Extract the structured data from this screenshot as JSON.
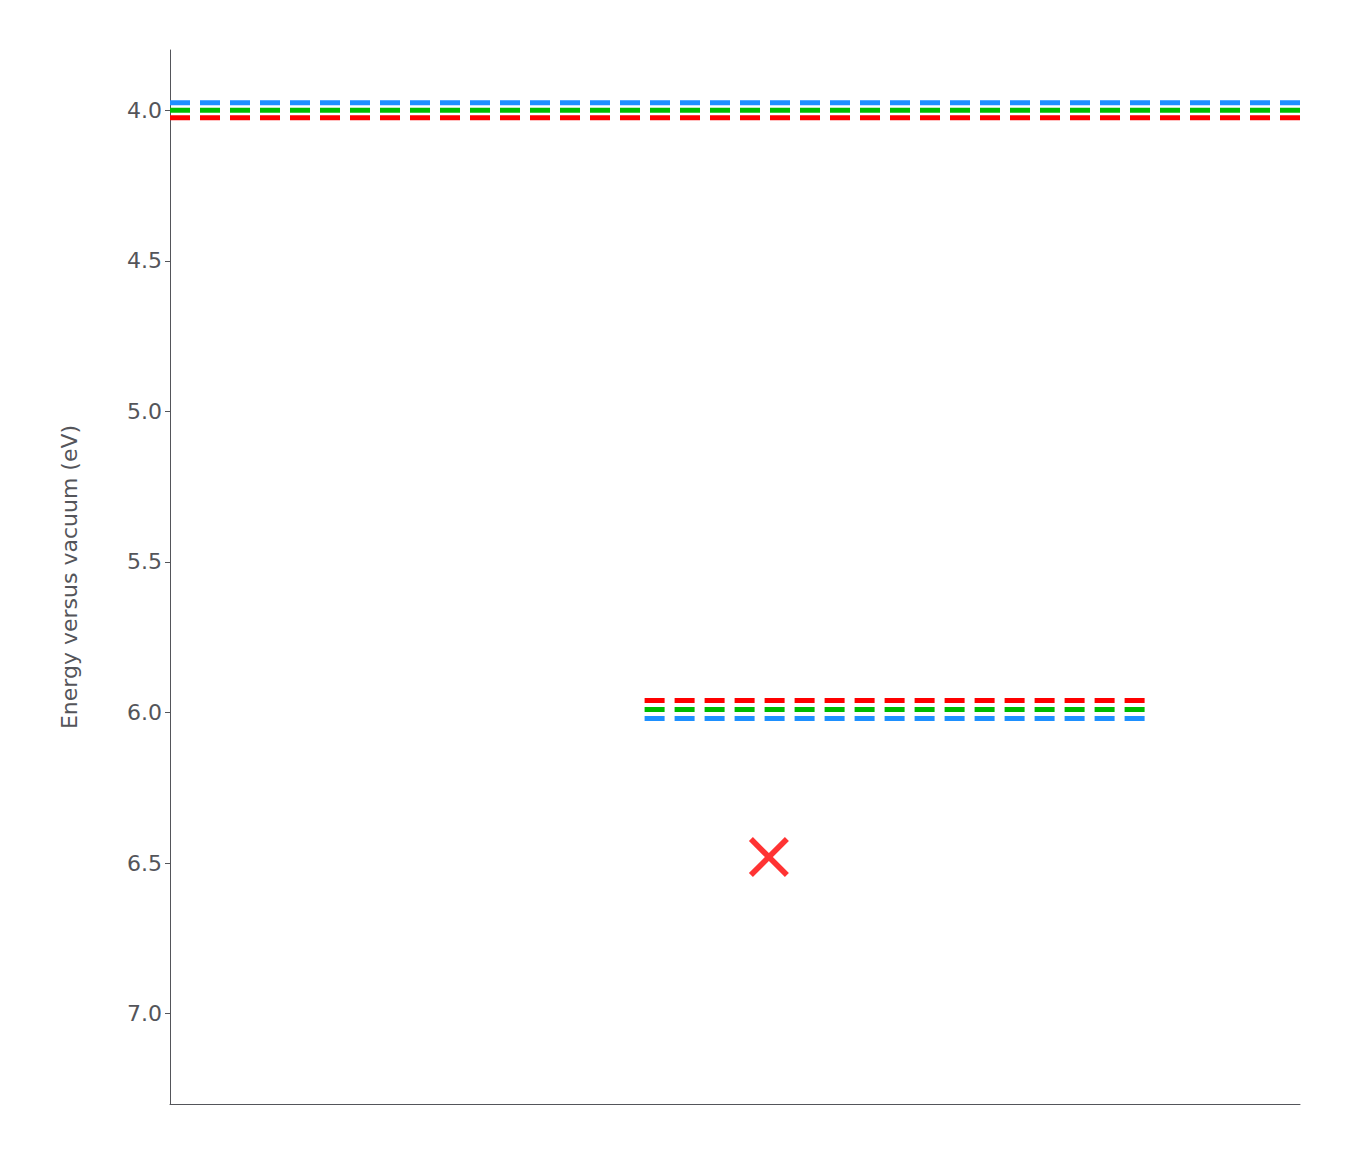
{
  "chart_data": {
    "type": "line",
    "ylabel": "Energy versus vacuum (eV)",
    "xlim": [
      0,
      1
    ],
    "ylim": [
      3.8,
      7.3
    ],
    "yticks": [
      {
        "value": 4.0,
        "label": "4.0"
      },
      {
        "value": 4.5,
        "label": "4.5"
      },
      {
        "value": 5.0,
        "label": "5.0"
      },
      {
        "value": 5.5,
        "label": "5.5"
      },
      {
        "value": 6.0,
        "label": "6.0"
      },
      {
        "value": 6.5,
        "label": "6.5"
      },
      {
        "value": 7.0,
        "label": "7.0"
      }
    ],
    "tick_labels": "y",
    "grid": false,
    "series": [
      {
        "type": "line",
        "x": [
          0,
          1
        ],
        "values": [
          3.975,
          3.975
        ],
        "color": "#1e90ff",
        "line_style": "dashed"
      },
      {
        "type": "line",
        "x": [
          0,
          1
        ],
        "values": [
          4.0,
          4.0
        ],
        "color": "#00bb00",
        "line_style": "dashed"
      },
      {
        "type": "line",
        "x": [
          0,
          1
        ],
        "values": [
          4.025,
          4.025
        ],
        "color": "#ff0000",
        "line_style": "dashed"
      },
      {
        "type": "line",
        "x": [
          0.42,
          0.87
        ],
        "values": [
          5.96,
          5.96
        ],
        "color": "#ff0000",
        "line_style": "dashed"
      },
      {
        "type": "line",
        "x": [
          0.42,
          0.87
        ],
        "values": [
          5.99,
          5.99
        ],
        "color": "#00bb00",
        "line_style": "dashed"
      },
      {
        "type": "line",
        "x": [
          0.42,
          0.87
        ],
        "values": [
          6.02,
          6.02
        ],
        "color": "#1e90ff",
        "line_style": "dashed"
      },
      {
        "type": "scatter",
        "x": [
          0.53
        ],
        "values": [
          6.48
        ],
        "color": "#ff0000",
        "marker": "x"
      }
    ]
  }
}
